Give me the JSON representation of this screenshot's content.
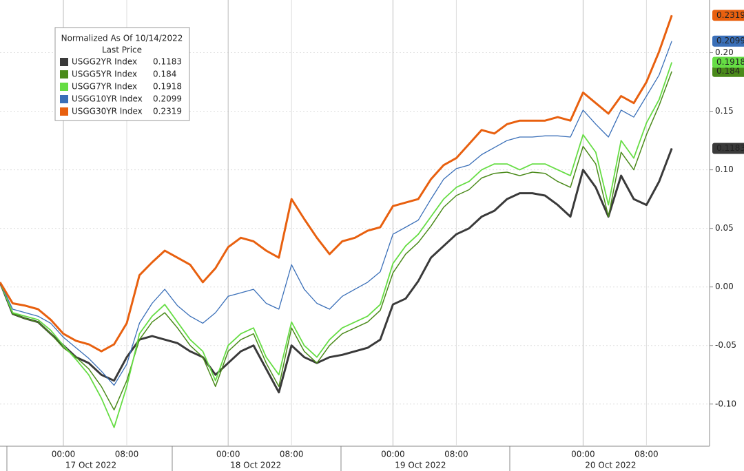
{
  "chart_data": {
    "type": "line",
    "legend_title": "Normalized As Of 10/14/2022",
    "legend_subtitle": "Last Price",
    "categories": [
      null,
      null,
      null,
      null,
      null,
      "00:00",
      null,
      null,
      null,
      null,
      "08:00",
      null,
      null,
      null,
      null,
      null,
      null,
      null,
      "00:00",
      null,
      null,
      null,
      null,
      "08:00",
      null,
      null,
      null,
      null,
      null,
      null,
      null,
      "00:00",
      null,
      null,
      null,
      null,
      "08:00",
      null,
      null,
      null,
      null,
      null,
      null,
      null,
      null,
      null,
      "00:00",
      null,
      null,
      null,
      null,
      "08:00",
      null,
      null
    ],
    "dates": [
      "17 Oct 2022",
      "18 Oct 2022",
      "19 Oct 2022",
      "20 Oct 2022"
    ],
    "ylim": [
      -0.136,
      0.245
    ],
    "yticks": [
      {
        "value": -0.1,
        "label": "-0.10"
      },
      -0.05,
      {
        "value": 0,
        "label": "0.00"
      },
      0.05,
      {
        "value": 0.1,
        "label": "0.10"
      },
      0.15,
      {
        "value": 0.2,
        "label": "0.20"
      }
    ],
    "grid": true,
    "legend": "upper left",
    "series": [
      {
        "name": "USGG2YR Index",
        "color": "#3a3a3a",
        "width": 3,
        "values": [
          0.004,
          -0.023,
          -0.027,
          -0.03,
          -0.04,
          -0.05,
          -0.06,
          -0.065,
          -0.075,
          -0.08,
          -0.06,
          -0.045,
          -0.042,
          -0.045,
          -0.048,
          -0.055,
          -0.06,
          -0.075,
          -0.065,
          -0.055,
          -0.05,
          -0.07,
          -0.09,
          -0.05,
          -0.06,
          -0.065,
          -0.06,
          -0.058,
          -0.055,
          -0.052,
          -0.045,
          -0.015,
          -0.01,
          0.005,
          0.025,
          0.035,
          0.045,
          0.05,
          0.06,
          0.065,
          0.075,
          0.08,
          0.08,
          0.078,
          0.07,
          0.06,
          0.1,
          0.085,
          0.06,
          0.095,
          0.075,
          0.07,
          0.09,
          0.1183
        ]
      },
      {
        "name": "USGG5YR Index",
        "color": "#4a8a1a",
        "width": 1.5,
        "values": [
          0.004,
          -0.023,
          -0.027,
          -0.03,
          -0.04,
          -0.052,
          -0.06,
          -0.07,
          -0.085,
          -0.105,
          -0.08,
          -0.045,
          -0.03,
          -0.022,
          -0.035,
          -0.05,
          -0.06,
          -0.085,
          -0.055,
          -0.045,
          -0.04,
          -0.065,
          -0.085,
          -0.035,
          -0.055,
          -0.065,
          -0.05,
          -0.04,
          -0.035,
          -0.03,
          -0.02,
          0.012,
          0.028,
          0.038,
          0.052,
          0.068,
          0.078,
          0.083,
          0.093,
          0.097,
          0.098,
          0.095,
          0.098,
          0.097,
          0.09,
          0.085,
          0.12,
          0.105,
          0.06,
          0.115,
          0.1,
          0.13,
          0.155,
          0.184
        ]
      },
      {
        "name": "USGG7YR Index",
        "color": "#66dd44",
        "width": 1.8,
        "values": [
          0.004,
          -0.022,
          -0.025,
          -0.028,
          -0.037,
          -0.05,
          -0.062,
          -0.075,
          -0.095,
          -0.12,
          -0.085,
          -0.04,
          -0.025,
          -0.015,
          -0.03,
          -0.045,
          -0.055,
          -0.08,
          -0.05,
          -0.04,
          -0.035,
          -0.06,
          -0.075,
          -0.03,
          -0.05,
          -0.06,
          -0.045,
          -0.035,
          -0.03,
          -0.025,
          -0.015,
          0.02,
          0.035,
          0.045,
          0.06,
          0.075,
          0.085,
          0.09,
          0.1,
          0.105,
          0.105,
          0.1,
          0.105,
          0.105,
          0.1,
          0.095,
          0.13,
          0.115,
          0.07,
          0.125,
          0.11,
          0.14,
          0.16,
          0.1918
        ]
      },
      {
        "name": "USGG10YR Index",
        "color": "#3a6fb8",
        "width": 1.3,
        "values": [
          0.004,
          -0.019,
          -0.022,
          -0.025,
          -0.031,
          -0.043,
          -0.052,
          -0.061,
          -0.072,
          -0.084,
          -0.066,
          -0.031,
          -0.014,
          -0.002,
          -0.016,
          -0.025,
          -0.031,
          -0.022,
          -0.008,
          -0.005,
          -0.002,
          -0.014,
          -0.019,
          0.019,
          -0.002,
          -0.014,
          -0.019,
          -0.008,
          -0.002,
          0.004,
          0.013,
          0.045,
          0.051,
          0.057,
          0.075,
          0.092,
          0.101,
          0.104,
          0.113,
          0.119,
          0.125,
          0.128,
          0.128,
          0.129,
          0.129,
          0.128,
          0.151,
          0.139,
          0.128,
          0.151,
          0.145,
          0.163,
          0.181,
          0.2099
        ]
      },
      {
        "name": "USGG30YR Index",
        "color": "#e8600f",
        "width": 3,
        "values": [
          0.004,
          -0.014,
          -0.016,
          -0.019,
          -0.028,
          -0.04,
          -0.046,
          -0.049,
          -0.055,
          -0.049,
          -0.031,
          0.01,
          0.021,
          0.031,
          0.025,
          0.019,
          0.004,
          0.016,
          0.034,
          0.042,
          0.039,
          0.031,
          0.025,
          0.075,
          0.058,
          0.042,
          0.028,
          0.039,
          0.042,
          0.048,
          0.051,
          0.069,
          0.072,
          0.075,
          0.092,
          0.104,
          0.11,
          0.122,
          0.134,
          0.131,
          0.139,
          0.142,
          0.142,
          0.142,
          0.145,
          0.142,
          0.166,
          0.157,
          0.148,
          0.163,
          0.157,
          0.175,
          0.201,
          0.2319
        ]
      }
    ]
  }
}
